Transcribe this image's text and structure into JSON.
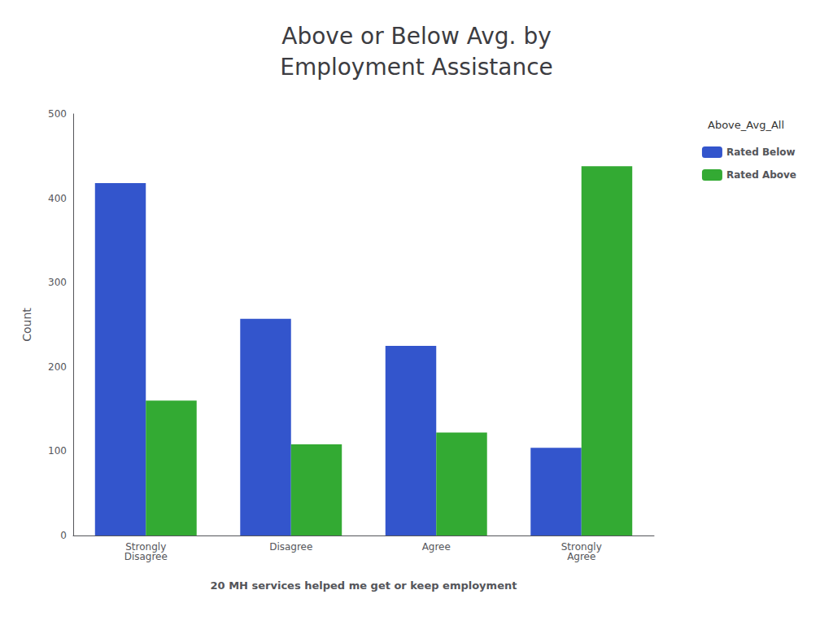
{
  "chart_data": {
    "type": "bar",
    "title": "Above or Below Avg. by\nEmployment Assistance",
    "xlabel": "20 MH services helped me get or keep employment",
    "ylabel": "Count",
    "categories": [
      "Strongly\nDisagree",
      "Disagree",
      "Agree",
      "Strongly\nAgree"
    ],
    "series": [
      {
        "name": "Rated Below",
        "color": "#3355CC",
        "values": [
          418,
          257,
          225,
          104
        ]
      },
      {
        "name": "Rated Above",
        "color": "#33AA33",
        "values": [
          160,
          108,
          122,
          438
        ]
      }
    ],
    "legend_title": "Above_Avg_All",
    "legend": "upper right",
    "ylim": [
      0,
      500
    ],
    "yticks": [
      0,
      100,
      200,
      300,
      400,
      500
    ],
    "grid": false
  }
}
